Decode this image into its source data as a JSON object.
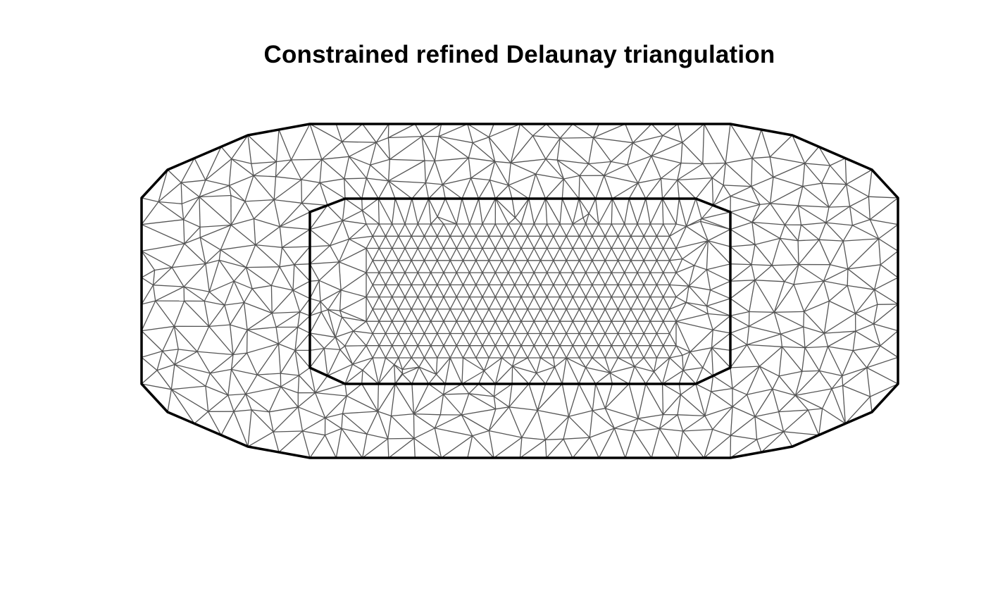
{
  "title": "Constrained refined Delaunay triangulation",
  "colors": {
    "mesh_edge": "#555555",
    "boundary": "#000000",
    "background": "#ffffff"
  }
}
